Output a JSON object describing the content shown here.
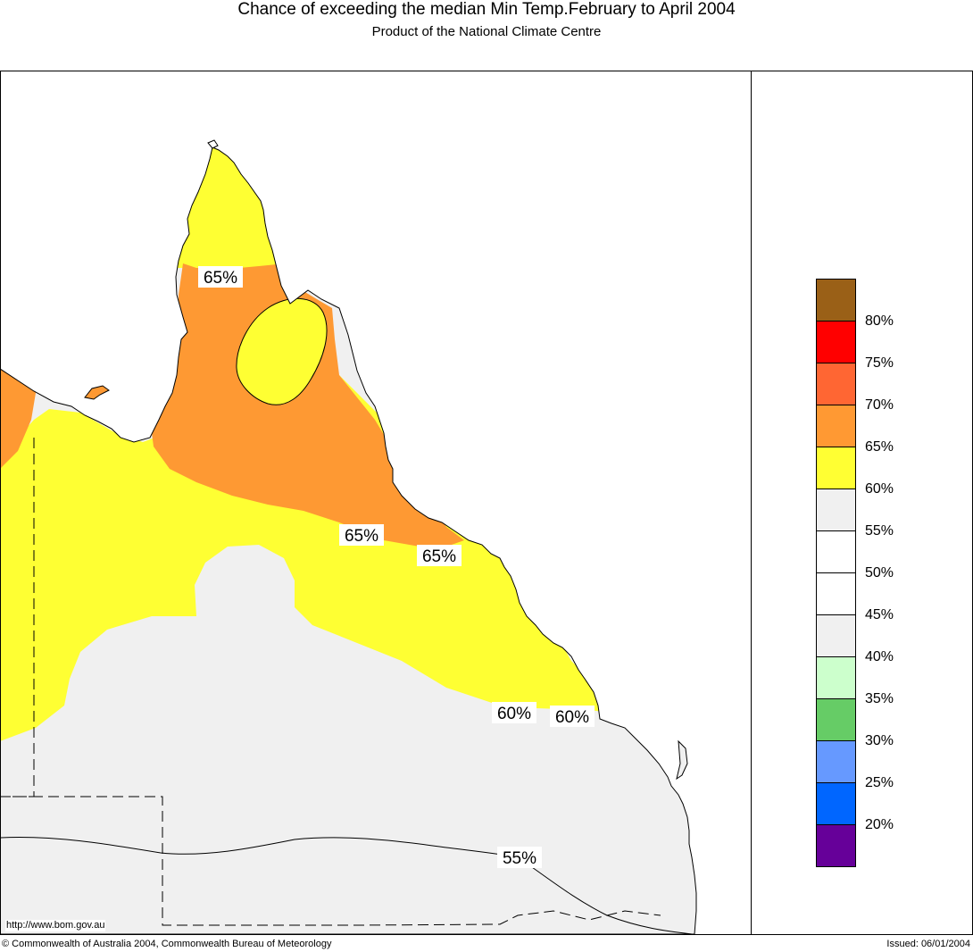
{
  "header": {
    "title": "Chance of exceeding the median Min Temp.February to April 2004",
    "subtitle": "Product of the National Climate Centre"
  },
  "map": {
    "region": "Queensland",
    "url_label": "http://www.bom.gov.au",
    "contour_labels": [
      "65%",
      "65%",
      "65%",
      "60%",
      "60%",
      "55%"
    ],
    "zone_colors": {
      "above_65": "#fe9933",
      "band_60_65": "#feff33",
      "band_55_60": "#f0f0f0",
      "band_50_55": "#ffffff"
    }
  },
  "legend": {
    "entries": [
      {
        "label": "80%",
        "color": "#9a6017"
      },
      {
        "label": "75%",
        "color": "#ff0000"
      },
      {
        "label": "70%",
        "color": "#ff6633"
      },
      {
        "label": "65%",
        "color": "#ff9933"
      },
      {
        "label": "60%",
        "color": "#ffff33"
      },
      {
        "label": "55%",
        "color": "#f0f0f0"
      },
      {
        "label": "50%",
        "color": "#ffffff"
      },
      {
        "label": "45%",
        "color": "#ffffff"
      },
      {
        "label": "40%",
        "color": "#f0f0f0"
      },
      {
        "label": "35%",
        "color": "#ccffcc"
      },
      {
        "label": "30%",
        "color": "#66cc66"
      },
      {
        "label": "25%",
        "color": "#6699ff"
      },
      {
        "label": "20%",
        "color": "#0066ff"
      },
      {
        "label": "",
        "color": "#660099"
      }
    ]
  },
  "footer": {
    "copyright": "© Commonwealth of Australia 2004, Commonwealth Bureau of Meteorology",
    "issued": "Issued: 06/01/2004"
  }
}
